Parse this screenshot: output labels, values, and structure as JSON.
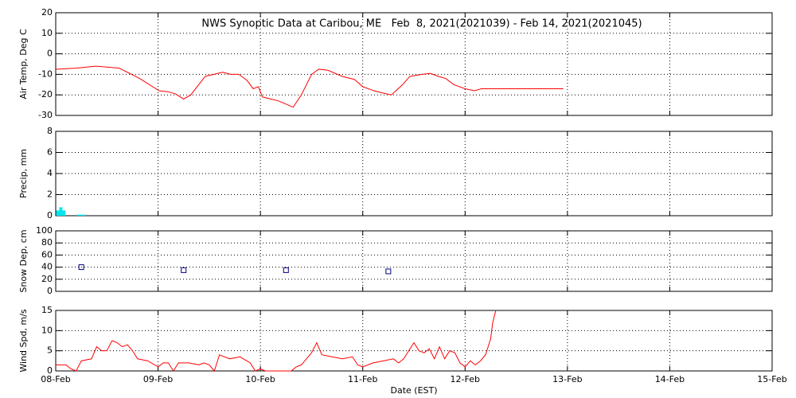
{
  "chart_data": [
    {
      "type": "line",
      "title": "NWS Synoptic Data at Caribou, ME   Feb  8, 2021(2021039) - Feb 14, 2021(2021045)",
      "ylabel": "Air Temp, Deg C",
      "color": "#ff0000",
      "grid": true,
      "ylim": [
        -30,
        20
      ],
      "yticks": [
        20,
        10,
        0,
        -10,
        -20,
        -30
      ],
      "x": [
        0,
        0.2,
        0.39,
        0.62,
        0.82,
        1.01,
        1.1,
        1.17,
        1.25,
        1.32,
        1.46,
        1.63,
        1.71,
        1.79,
        1.87,
        1.93,
        1.98,
        2.02,
        2.18,
        2.32,
        2.4,
        2.5,
        2.57,
        2.66,
        2.8,
        2.92,
        3.0,
        3.11,
        3.19,
        3.28,
        3.39,
        3.46,
        3.58,
        3.66,
        3.74,
        3.81,
        3.89,
        4.0,
        4.09,
        4.16,
        4.96
      ],
      "values": [
        -7.5,
        -7,
        -6,
        -7,
        -12,
        -18,
        -18.5,
        -19.5,
        -22,
        -20,
        -11,
        -9,
        -10,
        -10,
        -13,
        -17,
        -16,
        -21,
        -23,
        -26,
        -20,
        -10,
        -7.5,
        -8,
        -11,
        -12.5,
        -16,
        -18,
        -19,
        -20,
        -15,
        -11,
        -10,
        -9.5,
        -11,
        -12,
        -15,
        -17,
        -18,
        -17,
        -17
      ]
    },
    {
      "type": "bar",
      "ylabel": "Precip, mm",
      "color": "#00e5ee",
      "grid": true,
      "ylim": [
        0,
        8
      ],
      "yticks": [
        0,
        2,
        4,
        6,
        8
      ],
      "x": [
        0.02,
        0.05,
        0.08,
        0.22,
        0.25,
        0.28
      ],
      "values": [
        0.5,
        0.8,
        0.5,
        0.1,
        0.1,
        0.1
      ]
    },
    {
      "type": "scatter",
      "ylabel": "Snow Dep, cm",
      "color": "#000080",
      "grid": true,
      "ylim": [
        0,
        100
      ],
      "yticks": [
        0,
        20,
        40,
        60,
        80,
        100
      ],
      "x": [
        0.25,
        1.25,
        2.25,
        3.25
      ],
      "values": [
        40,
        35,
        35,
        33
      ]
    },
    {
      "type": "line",
      "ylabel": "Wind Spd, m/s",
      "xlabel": "Date (EST)",
      "color": "#ff0000",
      "grid": true,
      "ylim": [
        0,
        15
      ],
      "yticks": [
        0,
        5,
        10,
        15
      ],
      "xlim": [
        0,
        7
      ],
      "xticks": [
        {
          "value": 0,
          "label": "08-Feb"
        },
        {
          "value": 1,
          "label": "09-Feb"
        },
        {
          "value": 2,
          "label": "10-Feb"
        },
        {
          "value": 3,
          "label": "11-Feb"
        },
        {
          "value": 4,
          "label": "12-Feb"
        },
        {
          "value": 5,
          "label": "13-Feb"
        },
        {
          "value": 6,
          "label": "14-Feb"
        },
        {
          "value": 7,
          "label": "15-Feb"
        }
      ],
      "x": [
        0,
        0.1,
        0.15,
        0.2,
        0.25,
        0.35,
        0.4,
        0.45,
        0.5,
        0.55,
        0.6,
        0.65,
        0.7,
        0.75,
        0.8,
        0.9,
        1.0,
        1.05,
        1.1,
        1.15,
        1.2,
        1.3,
        1.4,
        1.45,
        1.5,
        1.55,
        1.6,
        1.7,
        1.8,
        1.9,
        1.95,
        2.0,
        2.05,
        2.3,
        2.35,
        2.4,
        2.45,
        2.5,
        2.55,
        2.6,
        2.7,
        2.8,
        2.9,
        2.95,
        3.0,
        3.1,
        3.2,
        3.3,
        3.35,
        3.4,
        3.45,
        3.5,
        3.55,
        3.6,
        3.65,
        3.7,
        3.75,
        3.8,
        3.85,
        3.9,
        3.95,
        4.0,
        4.05,
        4.1,
        4.15,
        4.2,
        4.25,
        4.27,
        4.3
      ],
      "values": [
        1.5,
        1.5,
        0.5,
        0,
        2.5,
        3,
        6,
        5,
        5,
        7.5,
        7,
        6,
        6.5,
        5,
        3,
        2.5,
        1,
        2,
        2,
        0,
        2,
        2,
        1.5,
        2,
        1.5,
        0,
        4,
        3,
        3.5,
        2,
        0,
        0.5,
        0,
        0,
        1,
        1.5,
        3,
        4.5,
        7,
        4,
        3.5,
        3,
        3.5,
        1.5,
        1,
        2,
        2.5,
        3,
        2,
        3,
        5,
        7,
        5,
        4.5,
        5.5,
        3,
        6,
        3,
        5,
        4.5,
        2,
        1,
        2.5,
        1.5,
        2.5,
        4,
        8,
        12,
        15
      ]
    }
  ]
}
